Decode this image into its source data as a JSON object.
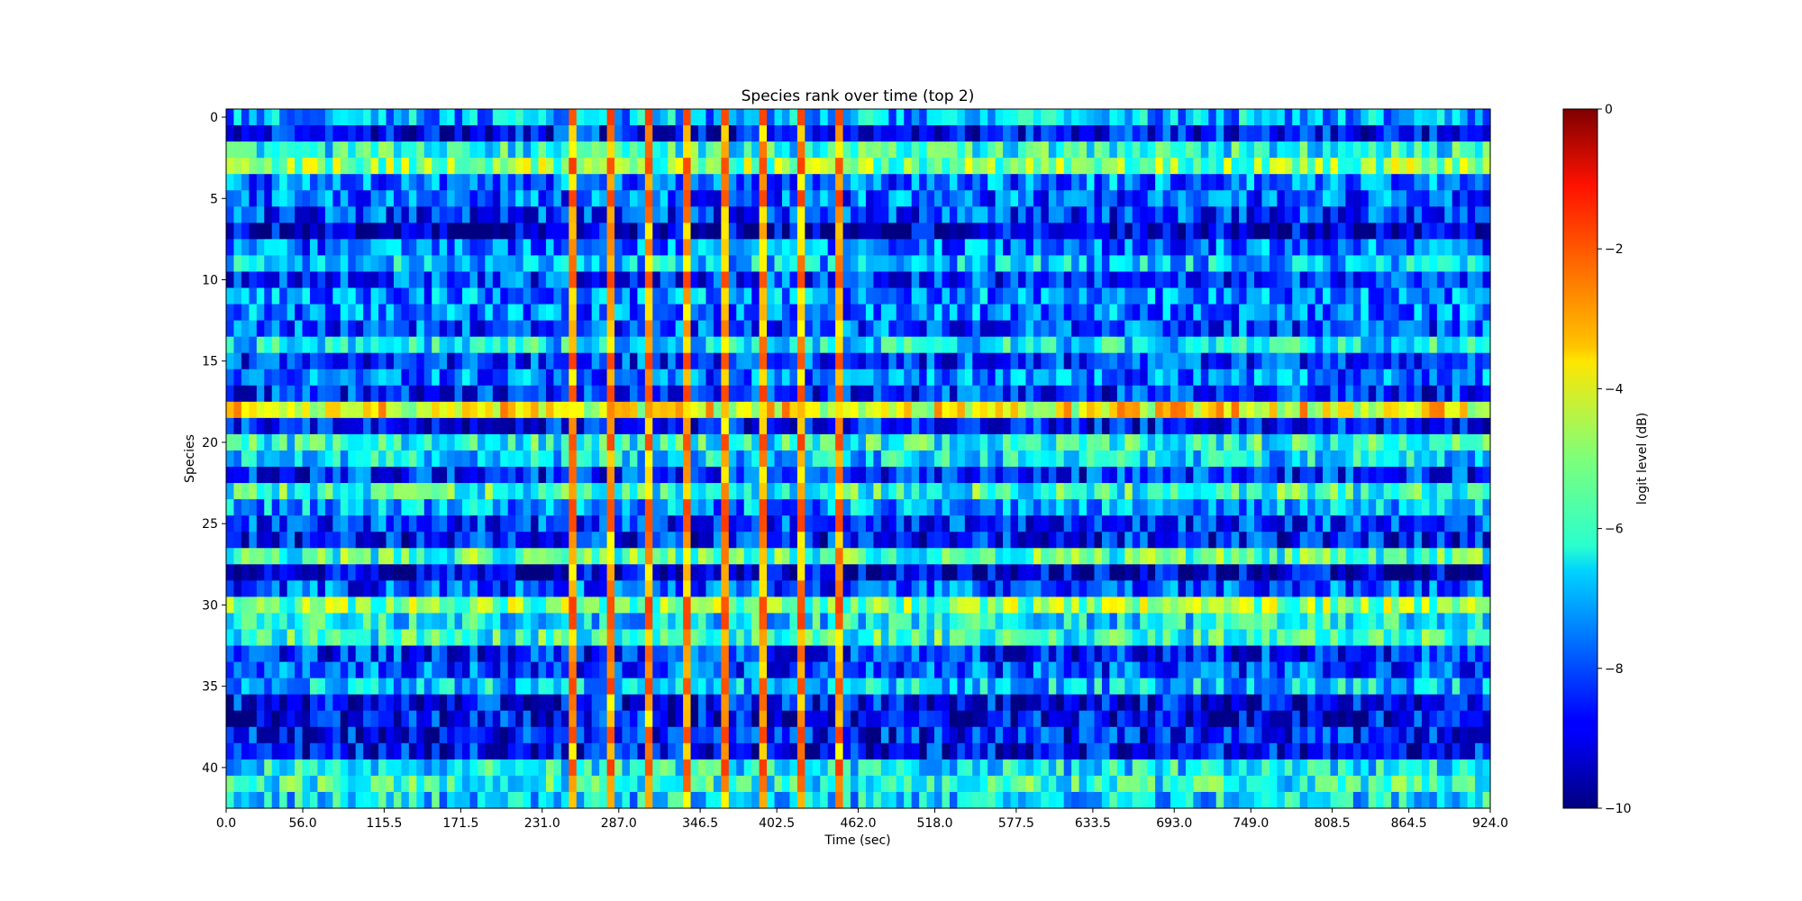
{
  "chart_data": {
    "type": "heatmap",
    "title": "Species rank over time (top 2)",
    "xlabel": "Time (sec)",
    "ylabel": "Species",
    "x_tick_labels": [
      "0.0",
      "56.0",
      "115.5",
      "171.5",
      "231.0",
      "287.0",
      "346.5",
      "402.5",
      "462.0",
      "518.0",
      "577.5",
      "633.5",
      "693.0",
      "749.0",
      "808.5",
      "864.5",
      "924.0"
    ],
    "x_tick_values": [
      0.0,
      56.0,
      115.5,
      171.5,
      231.0,
      287.0,
      346.5,
      402.5,
      462.0,
      518.0,
      577.5,
      633.5,
      693.0,
      749.0,
      808.5,
      864.5,
      924.0
    ],
    "xlim": [
      0,
      924
    ],
    "y_tick_labels": [
      "0",
      "5",
      "10",
      "15",
      "20",
      "25",
      "30",
      "35",
      "40"
    ],
    "y_tick_values": [
      0,
      5,
      10,
      15,
      20,
      25,
      30,
      35,
      40
    ],
    "n_species": 43,
    "n_time_frames": 166,
    "colormap": "jet",
    "colorbar": {
      "label": "logit level (dB)",
      "range": [
        -10,
        0
      ],
      "tick_labels": [
        "0",
        "−2",
        "−4",
        "−6",
        "−8",
        "−10"
      ],
      "tick_values": [
        0,
        -2,
        -4,
        -6,
        -8,
        -10
      ]
    },
    "highlight_columns_time_sec": [
      250,
      278,
      306,
      334,
      362,
      390,
      418,
      446
    ],
    "row_mean_levels_db": [
      -7.0,
      -8.6,
      -6.0,
      -5.0,
      -7.6,
      -7.8,
      -8.2,
      -9.2,
      -7.6,
      -6.8,
      -8.2,
      -7.4,
      -7.6,
      -8.0,
      -6.4,
      -8.2,
      -7.6,
      -8.4,
      -3.8,
      -8.6,
      -6.0,
      -6.6,
      -8.4,
      -5.8,
      -7.2,
      -8.2,
      -8.6,
      -5.6,
      -9.2,
      -8.0,
      -5.0,
      -6.4,
      -5.8,
      -8.4,
      -8.0,
      -6.8,
      -8.8,
      -8.8,
      -8.6,
      -8.8,
      -6.4,
      -6.0,
      -6.6
    ]
  }
}
